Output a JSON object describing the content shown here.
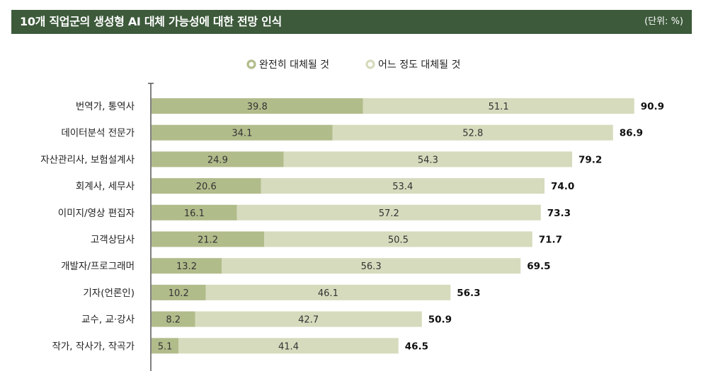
{
  "header": {
    "title": "10개 직업군의 생성형 AI 대체 가능성에 대한 전망 인식",
    "unit": "(단위: %)"
  },
  "colors": {
    "header_bg": "#3d5a3b",
    "full_replace": "#b1bc8b",
    "partial_replace": "#d6dbbd",
    "axis": "#555555"
  },
  "chart_data": {
    "type": "bar",
    "orientation": "horizontal",
    "stacked": true,
    "title": "10개 직업군의 생성형 AI 대체 가능성에 대한 전망 인식",
    "unit": "(단위: %)",
    "legend_position": "top-center",
    "categories": [
      "번역가, 통역사",
      "데이터분석 전문가",
      "자산관리사, 보험설계사",
      "회계사, 세무사",
      "이미지/영상 편집자",
      "고객상담사",
      "개발자/프로그래머",
      "기자(언론인)",
      "교수, 교·강사",
      "작가, 작사가, 작곡가"
    ],
    "series": [
      {
        "name": "완전히 대체될 것",
        "color": "#b1bc8b",
        "values": [
          39.8,
          34.1,
          24.9,
          20.6,
          16.1,
          21.2,
          13.2,
          10.2,
          8.2,
          5.1
        ]
      },
      {
        "name": "어느 정도 대체될 것",
        "color": "#d6dbbd",
        "values": [
          51.1,
          52.8,
          54.3,
          53.4,
          57.2,
          50.5,
          56.3,
          46.1,
          42.7,
          41.4
        ]
      }
    ],
    "totals": [
      "90.9",
      "86.9",
      "79.2",
      "74.0",
      "73.3",
      "71.7",
      "69.5",
      "56.3",
      "50.9",
      "46.5"
    ],
    "xlim": [
      0,
      100
    ],
    "grid": false
  }
}
